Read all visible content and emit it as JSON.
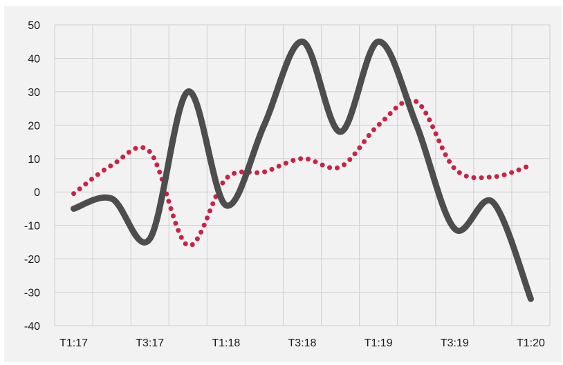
{
  "chart_data": {
    "type": "line",
    "title": "",
    "xlabel": "",
    "ylabel": "",
    "ylim": [
      -40,
      50
    ],
    "y_ticks": [
      "50",
      "40",
      "30",
      "20",
      "10",
      "0",
      "-10",
      "-20",
      "-30",
      "-40"
    ],
    "y_tick_values": [
      50,
      40,
      30,
      20,
      10,
      0,
      -10,
      -20,
      -30,
      -40
    ],
    "x_tick_labels": [
      "T1:17",
      "T3:17",
      "T1:18",
      "T3:18",
      "T1:19",
      "T3:19",
      "T1:20"
    ],
    "x_tick_positions": [
      0,
      2,
      4,
      6,
      8,
      10,
      12
    ],
    "xlim": [
      -0.5,
      12.5
    ],
    "grid": true,
    "legend": "none",
    "series": [
      {
        "color": "#4d4d4d",
        "style": "solid",
        "x": [
          0,
          1,
          2,
          3,
          4,
          5,
          6,
          7,
          8,
          9,
          10,
          11,
          12
        ],
        "values": [
          -5,
          -2,
          -14,
          30,
          -4,
          20,
          45,
          18,
          45,
          20,
          -11,
          -3,
          -32
        ]
      },
      {
        "color": "#c8234a",
        "style": "dotted",
        "x": [
          0,
          1,
          2,
          3,
          4,
          5,
          6,
          7,
          8,
          9,
          10,
          11,
          12
        ],
        "values": [
          -0.5,
          8,
          12,
          -16,
          4,
          6,
          10,
          7.5,
          20,
          27,
          7,
          4.5,
          8
        ]
      }
    ]
  }
}
